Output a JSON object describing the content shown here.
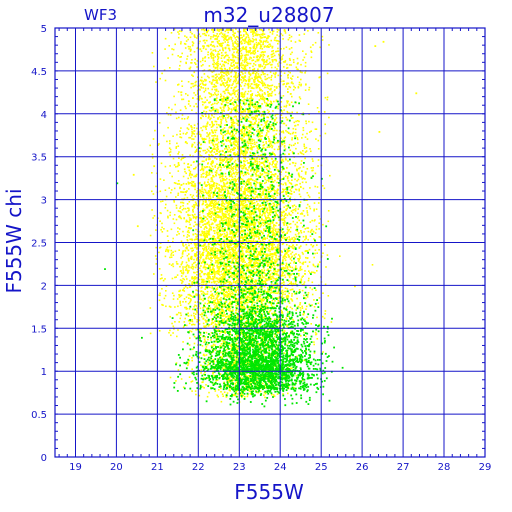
{
  "chart_data": {
    "type": "scatter",
    "title": "m32_u28807",
    "corner_label": "WF3",
    "xlabel": "F555W",
    "ylabel": "F555W  chi",
    "xlim": [
      18.5,
      29
    ],
    "ylim": [
      0,
      5
    ],
    "xticks": [
      "19",
      "20",
      "21",
      "22",
      "23",
      "24",
      "25",
      "26",
      "27",
      "28",
      "29"
    ],
    "yticks": [
      "0",
      "0.5",
      "1",
      "1.5",
      "2",
      "2.5",
      "3",
      "3.5",
      "4",
      "4.5",
      "5"
    ],
    "grid": true,
    "series": [
      {
        "color": "#ffff00",
        "x_center": 23.0,
        "x_spread": 0.75,
        "y_range": [
          0.7,
          5.0
        ],
        "note_values": {
          "x_min": 20.3,
          "x_max": 26.7,
          "y_peak": 2.5
        }
      },
      {
        "color": "#00e600",
        "x_center": 23.4,
        "x_spread": 0.7,
        "y_range": [
          0.6,
          4.6
        ],
        "note_values": {
          "x_min": 19.7,
          "x_max": 25.6,
          "y_peak": 1.2
        }
      }
    ]
  },
  "colors": {
    "axis": "#1515c8",
    "grid": "#1515c8",
    "yellow": "#ffff00",
    "green": "#00e600"
  }
}
